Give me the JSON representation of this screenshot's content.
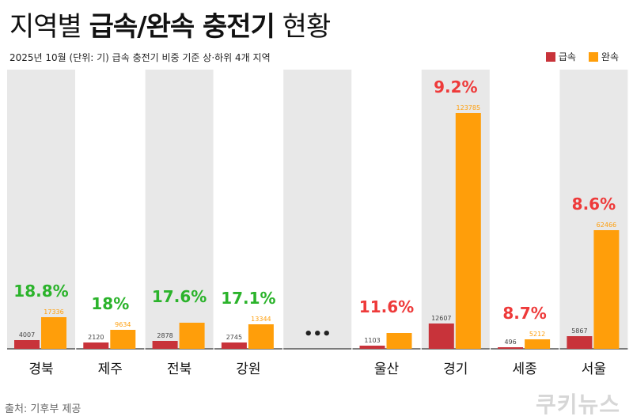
{
  "title": {
    "part1": "지역별 ",
    "bold": "급속/완속 충전기",
    "part3": " 현황"
  },
  "subtitle": "2025년 10월 (단위: 기)  급속 충전기 비중 기준 상·하위 4개 지역",
  "legend": {
    "fast": "급속",
    "slow": "완속"
  },
  "source": "출처: 기후부 제공",
  "logo": "쿠키뉴스",
  "colors": {
    "fast": "#c8333a",
    "slow": "#ff9e0a",
    "green": "#2bb32b",
    "red": "#ee3a3a",
    "panel": "#e8e8e8"
  },
  "chart_data": {
    "type": "bar",
    "series": [
      {
        "name": "급속",
        "values": [
          4007,
          2120,
          2878,
          2745,
          null,
          1103,
          12607,
          496,
          5867
        ]
      },
      {
        "name": "완속",
        "values": [
          17336,
          9634,
          null,
          13344,
          null,
          null,
          123785,
          5212,
          62466
        ]
      }
    ],
    "categories": [
      "경북",
      "제주",
      "전북",
      "강원",
      "•••",
      "울산",
      "경기",
      "세종",
      "서울"
    ],
    "share_labels": [
      "18.8%",
      "18%",
      "17.6%",
      "17.1%",
      "",
      "11.6%",
      "9.2%",
      "8.7%",
      "8.6%"
    ],
    "share_colors": [
      "green",
      "green",
      "green",
      "green",
      "",
      "red",
      "red",
      "red",
      "red"
    ],
    "ylim": [
      0,
      130000
    ]
  }
}
